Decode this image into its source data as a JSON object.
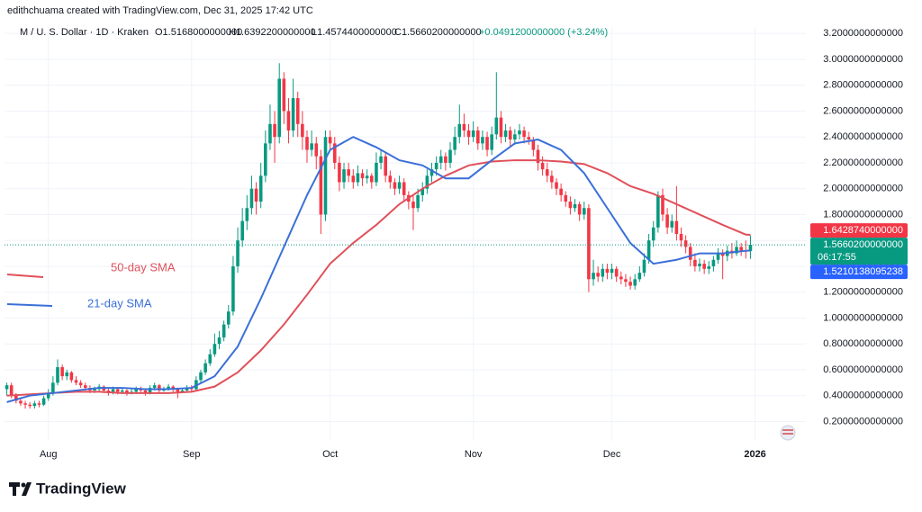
{
  "watermark": "edithchuama created with TradingView.com, Dec 31, 2025 17:42 UTC",
  "header": {
    "symbol": "M / U. S. Dollar · 1D · Kraken",
    "open": "O1.5168000000000",
    "high": "H1.6392200000000",
    "low": "L1.4574400000000",
    "close": "C1.5660200000000",
    "change": "+0.0491200000000 (+3.24%)"
  },
  "logo": "TradingView",
  "chart_data": {
    "type": "candlestick",
    "up_color": "#089981",
    "down_color": "#f23645",
    "grid": true,
    "xlim": [
      -0.5,
      173
    ],
    "ylim": [
      0.05,
      3.25
    ],
    "xticks": [
      {
        "value": 9,
        "label": "Aug"
      },
      {
        "value": 40,
        "label": "Sep"
      },
      {
        "value": 70,
        "label": "Oct"
      },
      {
        "value": 101,
        "label": "Nov"
      },
      {
        "value": 131,
        "label": "Dec"
      },
      {
        "value": 162,
        "label": "2026"
      }
    ],
    "yticks": [
      {
        "value": 0.2,
        "label": "0.2000000000000"
      },
      {
        "value": 0.4,
        "label": "0.4000000000000"
      },
      {
        "value": 0.6,
        "label": "0.6000000000000"
      },
      {
        "value": 0.8,
        "label": "0.8000000000000"
      },
      {
        "value": 1.0,
        "label": "1.0000000000000"
      },
      {
        "value": 1.2,
        "label": "1.2000000000000"
      },
      {
        "value": 1.4,
        "label": "1.4000000000000"
      },
      {
        "value": 1.6,
        "label": "1.6000000000000"
      },
      {
        "value": 1.8,
        "label": "1.8000000000000"
      },
      {
        "value": 2.0,
        "label": "2.0000000000000"
      },
      {
        "value": 2.2,
        "label": "2.2000000000000"
      },
      {
        "value": 2.4,
        "label": "2.4000000000000"
      },
      {
        "value": 2.6,
        "label": "2.6000000000000"
      },
      {
        "value": 2.8,
        "label": "2.8000000000000"
      },
      {
        "value": 3.0,
        "label": "3.0000000000000"
      },
      {
        "value": 3.2,
        "label": "3.2000000000000"
      }
    ],
    "candles": [
      [
        0.45,
        0.5,
        0.4,
        0.48
      ],
      [
        0.48,
        0.5,
        0.38,
        0.4
      ],
      [
        0.4,
        0.42,
        0.34,
        0.36
      ],
      [
        0.36,
        0.38,
        0.32,
        0.34
      ],
      [
        0.34,
        0.36,
        0.3,
        0.33
      ],
      [
        0.33,
        0.35,
        0.3,
        0.32
      ],
      [
        0.32,
        0.36,
        0.3,
        0.34
      ],
      [
        0.34,
        0.36,
        0.31,
        0.33
      ],
      [
        0.33,
        0.4,
        0.32,
        0.38
      ],
      [
        0.38,
        0.45,
        0.36,
        0.42
      ],
      [
        0.42,
        0.55,
        0.4,
        0.5
      ],
      [
        0.5,
        0.68,
        0.48,
        0.62
      ],
      [
        0.62,
        0.64,
        0.52,
        0.55
      ],
      [
        0.55,
        0.6,
        0.52,
        0.58
      ],
      [
        0.58,
        0.59,
        0.5,
        0.52
      ],
      [
        0.52,
        0.55,
        0.48,
        0.5
      ],
      [
        0.5,
        0.52,
        0.46,
        0.48
      ],
      [
        0.48,
        0.5,
        0.44,
        0.46
      ],
      [
        0.46,
        0.48,
        0.42,
        0.44
      ],
      [
        0.44,
        0.47,
        0.42,
        0.45
      ],
      [
        0.45,
        0.49,
        0.43,
        0.47
      ],
      [
        0.47,
        0.48,
        0.42,
        0.44
      ],
      [
        0.44,
        0.46,
        0.4,
        0.42
      ],
      [
        0.42,
        0.47,
        0.41,
        0.45
      ],
      [
        0.45,
        0.46,
        0.41,
        0.43
      ],
      [
        0.43,
        0.46,
        0.42,
        0.44
      ],
      [
        0.44,
        0.45,
        0.4,
        0.42
      ],
      [
        0.42,
        0.45,
        0.41,
        0.43
      ],
      [
        0.43,
        0.47,
        0.42,
        0.45
      ],
      [
        0.45,
        0.47,
        0.42,
        0.44
      ],
      [
        0.44,
        0.45,
        0.4,
        0.42
      ],
      [
        0.42,
        0.48,
        0.41,
        0.46
      ],
      [
        0.46,
        0.5,
        0.44,
        0.48
      ],
      [
        0.48,
        0.49,
        0.42,
        0.44
      ],
      [
        0.44,
        0.47,
        0.43,
        0.45
      ],
      [
        0.45,
        0.49,
        0.44,
        0.47
      ],
      [
        0.47,
        0.48,
        0.43,
        0.45
      ],
      [
        0.45,
        0.46,
        0.38,
        0.43
      ],
      [
        0.43,
        0.46,
        0.42,
        0.44
      ],
      [
        0.44,
        0.48,
        0.43,
        0.46
      ],
      [
        0.46,
        0.48,
        0.43,
        0.45
      ],
      [
        0.45,
        0.55,
        0.44,
        0.52
      ],
      [
        0.52,
        0.6,
        0.5,
        0.58
      ],
      [
        0.58,
        0.68,
        0.56,
        0.65
      ],
      [
        0.65,
        0.76,
        0.63,
        0.72
      ],
      [
        0.72,
        0.88,
        0.7,
        0.8
      ],
      [
        0.8,
        0.9,
        0.76,
        0.85
      ],
      [
        0.85,
        0.98,
        0.82,
        0.95
      ],
      [
        0.95,
        1.1,
        0.92,
        1.05
      ],
      [
        1.05,
        1.48,
        1.02,
        1.4
      ],
      [
        1.4,
        1.7,
        1.35,
        1.6
      ],
      [
        1.6,
        1.85,
        1.55,
        1.75
      ],
      [
        1.75,
        1.95,
        1.68,
        1.85
      ],
      [
        1.85,
        2.1,
        1.8,
        2.0
      ],
      [
        2.0,
        2.05,
        1.8,
        1.9
      ],
      [
        1.9,
        2.2,
        1.85,
        2.1
      ],
      [
        2.1,
        2.45,
        2.05,
        2.35
      ],
      [
        2.35,
        2.65,
        2.3,
        2.5
      ],
      [
        2.5,
        2.6,
        2.2,
        2.4
      ],
      [
        2.4,
        2.97,
        2.35,
        2.85
      ],
      [
        2.85,
        2.9,
        2.5,
        2.6
      ],
      [
        2.6,
        2.7,
        2.35,
        2.45
      ],
      [
        2.45,
        2.85,
        2.4,
        2.7
      ],
      [
        2.7,
        2.75,
        2.4,
        2.5
      ],
      [
        2.5,
        2.6,
        2.3,
        2.4
      ],
      [
        2.4,
        2.45,
        2.2,
        2.3
      ],
      [
        2.3,
        2.45,
        2.25,
        2.35
      ],
      [
        2.35,
        2.4,
        2.15,
        2.25
      ],
      [
        2.25,
        2.3,
        1.65,
        1.8
      ],
      [
        1.8,
        2.45,
        1.75,
        2.4
      ],
      [
        2.4,
        2.45,
        2.3,
        2.35
      ],
      [
        2.35,
        2.4,
        2.15,
        2.2
      ],
      [
        2.2,
        2.25,
        1.98,
        2.05
      ],
      [
        2.05,
        2.2,
        2.0,
        2.15
      ],
      [
        2.15,
        2.2,
        2.05,
        2.1
      ],
      [
        2.1,
        2.15,
        2.0,
        2.05
      ],
      [
        2.05,
        2.18,
        2.02,
        2.12
      ],
      [
        2.12,
        2.15,
        2.02,
        2.08
      ],
      [
        2.08,
        2.15,
        2.04,
        2.1
      ],
      [
        2.1,
        2.12,
        2.0,
        2.05
      ],
      [
        2.05,
        2.28,
        2.02,
        2.2
      ],
      [
        2.2,
        2.3,
        2.15,
        2.25
      ],
      [
        2.25,
        2.28,
        2.05,
        2.1
      ],
      [
        2.1,
        2.14,
        2.0,
        2.05
      ],
      [
        2.05,
        2.08,
        1.95,
        2.0
      ],
      [
        2.0,
        2.1,
        1.96,
        2.05
      ],
      [
        2.05,
        2.08,
        1.9,
        1.95
      ],
      [
        1.95,
        1.98,
        1.84,
        1.9
      ],
      [
        1.9,
        1.95,
        1.68,
        1.85
      ],
      [
        1.85,
        2.0,
        1.82,
        1.95
      ],
      [
        1.95,
        2.05,
        1.9,
        2.0
      ],
      [
        2.0,
        2.15,
        1.96,
        2.1
      ],
      [
        2.1,
        2.2,
        2.05,
        2.15
      ],
      [
        2.15,
        2.25,
        2.1,
        2.2
      ],
      [
        2.2,
        2.3,
        2.15,
        2.25
      ],
      [
        2.25,
        2.28,
        2.14,
        2.2
      ],
      [
        2.2,
        2.36,
        2.16,
        2.3
      ],
      [
        2.3,
        2.48,
        2.26,
        2.4
      ],
      [
        2.4,
        2.65,
        2.35,
        2.5
      ],
      [
        2.5,
        2.58,
        2.4,
        2.45
      ],
      [
        2.45,
        2.5,
        2.34,
        2.4
      ],
      [
        2.4,
        2.52,
        2.36,
        2.45
      ],
      [
        2.45,
        2.48,
        2.3,
        2.35
      ],
      [
        2.35,
        2.45,
        2.3,
        2.4
      ],
      [
        2.4,
        2.44,
        2.25,
        2.3
      ],
      [
        2.3,
        2.48,
        2.26,
        2.42
      ],
      [
        2.42,
        2.9,
        2.38,
        2.55
      ],
      [
        2.55,
        2.6,
        2.35,
        2.4
      ],
      [
        2.4,
        2.5,
        2.36,
        2.45
      ],
      [
        2.45,
        2.48,
        2.32,
        2.38
      ],
      [
        2.38,
        2.46,
        2.34,
        2.42
      ],
      [
        2.42,
        2.5,
        2.38,
        2.45
      ],
      [
        2.45,
        2.48,
        2.35,
        2.4
      ],
      [
        2.4,
        2.44,
        2.34,
        2.38
      ],
      [
        2.38,
        2.4,
        2.25,
        2.3
      ],
      [
        2.3,
        2.34,
        2.14,
        2.2
      ],
      [
        2.2,
        2.25,
        2.1,
        2.15
      ],
      [
        2.15,
        2.2,
        2.05,
        2.1
      ],
      [
        2.1,
        2.14,
        2.0,
        2.05
      ],
      [
        2.05,
        2.08,
        1.95,
        2.0
      ],
      [
        2.0,
        2.04,
        1.9,
        1.95
      ],
      [
        1.95,
        1.98,
        1.86,
        1.9
      ],
      [
        1.9,
        1.94,
        1.8,
        1.85
      ],
      [
        1.85,
        1.92,
        1.82,
        1.88
      ],
      [
        1.88,
        1.9,
        1.75,
        1.8
      ],
      [
        1.8,
        1.9,
        1.76,
        1.85
      ],
      [
        1.85,
        1.88,
        1.2,
        1.3
      ],
      [
        1.3,
        1.45,
        1.25,
        1.35
      ],
      [
        1.35,
        1.4,
        1.28,
        1.32
      ],
      [
        1.32,
        1.42,
        1.28,
        1.38
      ],
      [
        1.38,
        1.42,
        1.3,
        1.35
      ],
      [
        1.35,
        1.42,
        1.3,
        1.38
      ],
      [
        1.38,
        1.4,
        1.28,
        1.32
      ],
      [
        1.32,
        1.36,
        1.26,
        1.3
      ],
      [
        1.3,
        1.34,
        1.24,
        1.28
      ],
      [
        1.28,
        1.32,
        1.22,
        1.25
      ],
      [
        1.25,
        1.34,
        1.22,
        1.3
      ],
      [
        1.3,
        1.4,
        1.28,
        1.35
      ],
      [
        1.35,
        1.5,
        1.32,
        1.45
      ],
      [
        1.45,
        1.65,
        1.42,
        1.6
      ],
      [
        1.6,
        1.75,
        1.55,
        1.7
      ],
      [
        1.7,
        1.98,
        1.66,
        1.95
      ],
      [
        1.95,
        2.0,
        1.75,
        1.8
      ],
      [
        1.8,
        1.85,
        1.65,
        1.7
      ],
      [
        1.7,
        1.8,
        1.66,
        1.75
      ],
      [
        1.75,
        2.02,
        1.6,
        1.65
      ],
      [
        1.65,
        1.7,
        1.55,
        1.6
      ],
      [
        1.6,
        1.64,
        1.5,
        1.55
      ],
      [
        1.55,
        1.58,
        1.4,
        1.45
      ],
      [
        1.45,
        1.5,
        1.36,
        1.4
      ],
      [
        1.4,
        1.46,
        1.36,
        1.42
      ],
      [
        1.42,
        1.45,
        1.34,
        1.38
      ],
      [
        1.38,
        1.44,
        1.34,
        1.4
      ],
      [
        1.4,
        1.48,
        1.36,
        1.45
      ],
      [
        1.45,
        1.54,
        1.42,
        1.5
      ],
      [
        1.5,
        1.53,
        1.3,
        1.48
      ],
      [
        1.48,
        1.56,
        1.44,
        1.52
      ],
      [
        1.52,
        1.58,
        1.46,
        1.5
      ],
      [
        1.5,
        1.6,
        1.48,
        1.55
      ],
      [
        1.55,
        1.58,
        1.48,
        1.52
      ],
      [
        1.52,
        1.6,
        1.46,
        1.5168
      ],
      [
        1.5168,
        1.6392,
        1.4574,
        1.5662
      ]
    ],
    "series": [
      {
        "name": "50-day SMA",
        "color": "#e0505a",
        "x": [
          0,
          5,
          10,
          15,
          20,
          25,
          30,
          35,
          40,
          45,
          50,
          55,
          60,
          65,
          70,
          75,
          80,
          85,
          90,
          95,
          100,
          105,
          110,
          115,
          120,
          125,
          130,
          135,
          140,
          145,
          150,
          155,
          160,
          161
        ],
        "values": [
          0.4,
          0.41,
          0.42,
          0.43,
          0.43,
          0.42,
          0.42,
          0.42,
          0.43,
          0.47,
          0.58,
          0.75,
          0.95,
          1.18,
          1.42,
          1.58,
          1.72,
          1.88,
          2.0,
          2.1,
          2.18,
          2.21,
          2.22,
          2.22,
          2.21,
          2.19,
          2.12,
          2.02,
          1.96,
          1.88,
          1.8,
          1.72,
          1.645,
          1.643
        ]
      },
      {
        "name": "21-day SMA",
        "color": "#3a6fd8",
        "x": [
          0,
          5,
          10,
          15,
          20,
          25,
          30,
          35,
          40,
          45,
          50,
          55,
          60,
          65,
          70,
          75,
          80,
          85,
          90,
          95,
          100,
          105,
          110,
          115,
          120,
          125,
          130,
          135,
          140,
          145,
          150,
          155,
          160,
          161
        ],
        "values": [
          0.35,
          0.4,
          0.42,
          0.44,
          0.46,
          0.46,
          0.45,
          0.45,
          0.46,
          0.55,
          0.78,
          1.15,
          1.55,
          1.95,
          2.3,
          2.4,
          2.32,
          2.22,
          2.18,
          2.08,
          2.08,
          2.22,
          2.35,
          2.38,
          2.3,
          2.12,
          1.85,
          1.58,
          1.42,
          1.45,
          1.5,
          1.5,
          1.52,
          1.521
        ]
      }
    ],
    "price_labels": [
      {
        "value": 1.642874,
        "label": "1.6428740000000",
        "color": "#f23645"
      },
      {
        "value": 1.56602,
        "label": "1.5660200000000",
        "color": "#089981",
        "countdown": "06:17:55"
      },
      {
        "value": 1.5210138095238,
        "label": "1.5210138095238",
        "color": "#2962ff"
      }
    ]
  }
}
